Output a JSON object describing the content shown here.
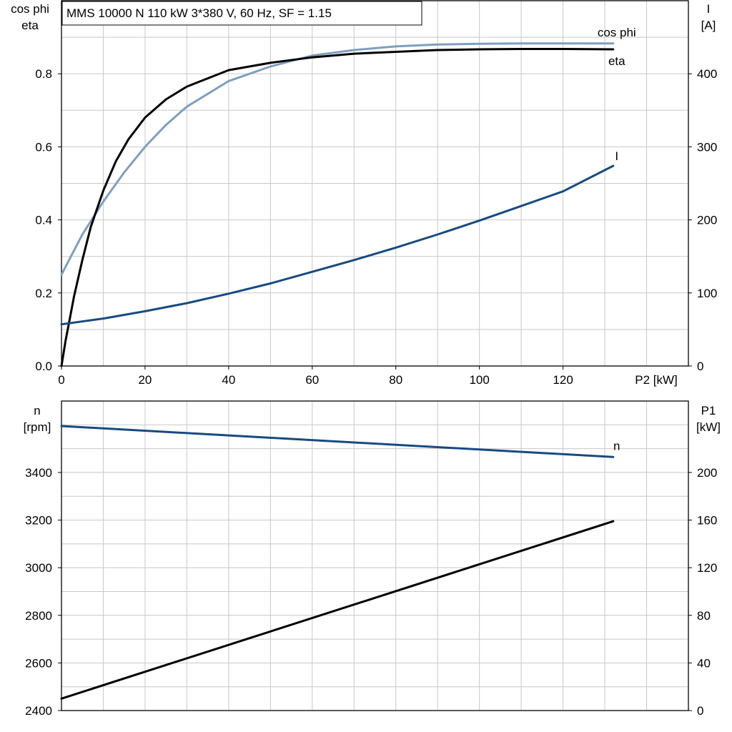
{
  "title": "MMS 10000 N   110 kW   3*380 V, 60 Hz, SF = 1.15",
  "colors": {
    "cosphi": "#7f9fbe",
    "eta": "#000000",
    "current": "#184a80",
    "speed": "#184a80",
    "p1": "#000000",
    "grid": "#c8c8c8"
  },
  "chart_data": [
    {
      "type": "line",
      "left_axis_label": [
        "cos phi",
        "eta"
      ],
      "right_axis_label": [
        "I",
        "[A]"
      ],
      "xlabel": "P2 [kW]",
      "xlim": [
        0,
        150
      ],
      "ylim_left": [
        0,
        1.0
      ],
      "ylim_right": [
        0,
        500
      ],
      "x_ticks": [
        0,
        20,
        40,
        60,
        80,
        100,
        120
      ],
      "x_tick_labels": [
        "0",
        "20",
        "40",
        "60",
        "80",
        "100",
        "120"
      ],
      "y_left_ticks": [
        0.0,
        0.2,
        0.4,
        0.6,
        0.8
      ],
      "y_left_tick_labels": [
        "0.0",
        "0.2",
        "0.4",
        "0.6",
        "0.8"
      ],
      "y_right_ticks": [
        0,
        100,
        200,
        300,
        400
      ],
      "y_right_tick_labels": [
        "0",
        "100",
        "200",
        "300",
        "400"
      ],
      "grid": true,
      "series": [
        {
          "name": "cos phi",
          "axis": "left",
          "color_key": "cosphi",
          "x": [
            0,
            5,
            10,
            15,
            20,
            25,
            30,
            40,
            50,
            60,
            70,
            80,
            90,
            100,
            110,
            120,
            132
          ],
          "y": [
            0.25,
            0.36,
            0.45,
            0.53,
            0.6,
            0.66,
            0.71,
            0.78,
            0.82,
            0.85,
            0.865,
            0.875,
            0.88,
            0.882,
            0.883,
            0.883,
            0.883
          ]
        },
        {
          "name": "eta",
          "axis": "left",
          "color_key": "eta",
          "x": [
            0,
            1,
            2,
            3,
            5,
            7,
            10,
            13,
            16,
            20,
            25,
            30,
            40,
            50,
            60,
            70,
            80,
            90,
            100,
            110,
            120,
            132
          ],
          "y": [
            0.0,
            0.07,
            0.13,
            0.19,
            0.29,
            0.38,
            0.48,
            0.56,
            0.62,
            0.68,
            0.73,
            0.765,
            0.81,
            0.83,
            0.845,
            0.855,
            0.86,
            0.865,
            0.867,
            0.868,
            0.868,
            0.867
          ]
        },
        {
          "name": "I",
          "axis": "right",
          "color_key": "current",
          "x": [
            0,
            10,
            20,
            30,
            40,
            50,
            60,
            70,
            80,
            90,
            100,
            110,
            120,
            132
          ],
          "y": [
            57,
            65,
            75,
            86,
            99,
            113,
            129,
            145,
            162,
            180,
            199,
            219,
            239,
            274
          ]
        }
      ]
    },
    {
      "type": "line",
      "left_axis_label": [
        "n",
        "[rpm]"
      ],
      "right_axis_label": [
        "P1",
        "[kW]"
      ],
      "xlim": [
        0,
        150
      ],
      "ylim_left": [
        2400,
        3700
      ],
      "ylim_right": [
        0,
        260
      ],
      "y_left_ticks": [
        2400,
        2600,
        2800,
        3000,
        3200,
        3400
      ],
      "y_left_tick_labels": [
        "2400",
        "2600",
        "2800",
        "3000",
        "3200",
        "3400"
      ],
      "y_right_ticks": [
        0,
        40,
        80,
        120,
        160,
        200
      ],
      "y_right_tick_labels": [
        "0",
        "40",
        "80",
        "120",
        "160",
        "200"
      ],
      "grid": true,
      "series": [
        {
          "name": "n",
          "axis": "left",
          "color_key": "speed",
          "x": [
            0,
            132
          ],
          "y": [
            3595,
            3465
          ]
        },
        {
          "name": "",
          "axis": "right",
          "color_key": "p1",
          "x": [
            0,
            132
          ],
          "y": [
            10,
            159
          ]
        }
      ]
    }
  ]
}
